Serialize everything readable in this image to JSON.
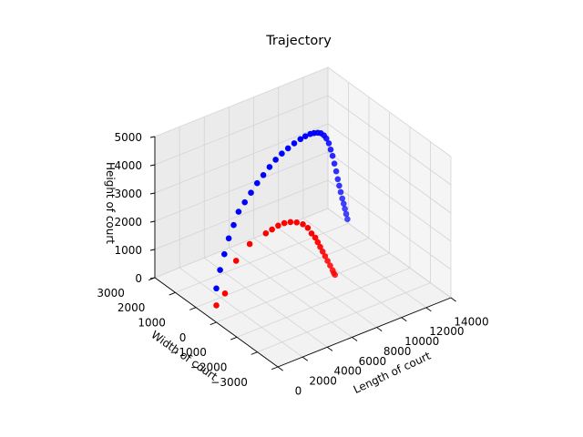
{
  "chart_data": {
    "type": "scatter",
    "projection": "3d",
    "title": "Trajectory",
    "xlabel": "Length of court",
    "ylabel": "Width of court",
    "zlabel": "Height of court",
    "xlim": [
      0,
      14000
    ],
    "ylim": [
      -3000,
      3000
    ],
    "zlim": [
      0,
      5000
    ],
    "xticks": [
      "0",
      "2000",
      "4000",
      "6000",
      "8000",
      "10000",
      "12000",
      "14000"
    ],
    "yticks": [
      "−3000",
      "−2000",
      "−1000",
      "0",
      "1000",
      "2000",
      "3000"
    ],
    "zticks": [
      "0",
      "1000",
      "2000",
      "3000",
      "4000",
      "5000"
    ],
    "grid": true,
    "legend": "none",
    "series": [
      {
        "color": "#0000ff",
        "x": [
          0,
          300,
          650,
          1000,
          1400,
          1800,
          2300,
          2800,
          3300,
          3800,
          4300,
          4800,
          5300,
          5800,
          6300,
          6800,
          7200,
          7600,
          7900,
          8200,
          8450,
          8700,
          8900,
          9100,
          9250,
          9400,
          9550,
          9700,
          9820,
          9940,
          10060,
          10180,
          10300,
          10400,
          10500,
          10600
        ],
        "y": [
          0,
          0,
          0,
          0,
          0,
          0,
          0,
          0,
          0,
          0,
          0,
          0,
          0,
          0,
          0,
          0,
          0,
          0,
          0,
          0,
          0,
          0,
          0,
          0,
          0,
          0,
          0,
          0,
          0,
          0,
          0,
          0,
          0,
          0,
          0,
          0
        ],
        "z": [
          1200,
          1800,
          2300,
          2800,
          3200,
          3600,
          3850,
          4100,
          4350,
          4550,
          4750,
          4920,
          5050,
          5150,
          5240,
          5300,
          5330,
          5340,
          5320,
          5280,
          5220,
          5100,
          4950,
          4750,
          4500,
          4250,
          3950,
          3650,
          3350,
          3100,
          2850,
          2600,
          2400,
          2200,
          2000,
          1800
        ]
      },
      {
        "color": "#ff0000",
        "x": [
          0,
          700,
          1600,
          2700,
          4000,
          4500,
          5000,
          5500,
          6000,
          6500,
          7000,
          7400,
          7700,
          8000,
          8200,
          8400,
          8600,
          8800,
          9000,
          9200,
          9400,
          9500,
          9600
        ],
        "y": [
          0,
          0,
          0,
          0,
          0,
          0,
          0,
          0,
          0,
          0,
          0,
          0,
          0,
          0,
          0,
          0,
          0,
          0,
          0,
          0,
          0,
          0,
          0
        ],
        "z": [
          600,
          900,
          1900,
          2300,
          2450,
          2500,
          2550,
          2550,
          2500,
          2400,
          2250,
          2050,
          1800,
          1600,
          1400,
          1200,
          1000,
          800,
          600,
          400,
          200,
          80,
          0
        ]
      }
    ]
  }
}
